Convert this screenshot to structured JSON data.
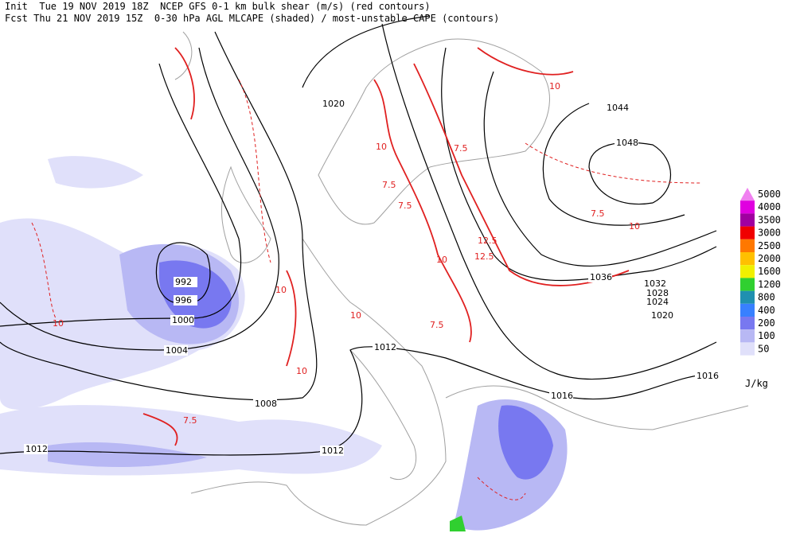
{
  "header": {
    "line1": "Init  Tue 19 NOV 2019 18Z  NCEP GFS 0-1 km bulk shear (m/s) (red contours)",
    "line2": "Fcst Thu 21 NOV 2019 15Z  0-30 hPa AGL MLCAPE (shaded) / most-unstable CAPE (contours)"
  },
  "pressure_labels": [
    "1020",
    "1044",
    "1048",
    "992",
    "996",
    "1000",
    "1004",
    "1012",
    "1008",
    "1016",
    "1016",
    "1012",
    "1012",
    "1036",
    "1032",
    "1028",
    "1024",
    "1020"
  ],
  "shear_labels": [
    "10",
    "7.5",
    "10",
    "12.5",
    "10",
    "7.5",
    "10",
    "7.5",
    "10",
    "12.5",
    "7.5",
    "10",
    "7.5",
    "10",
    "7.5",
    "10"
  ],
  "legend": {
    "levels": [
      {
        "label": 5000,
        "color": "#f080f0"
      },
      {
        "label": 4000,
        "color": "#e000e0"
      },
      {
        "label": 3500,
        "color": "#a000a0"
      },
      {
        "label": 3000,
        "color": "#f00000"
      },
      {
        "label": 2500,
        "color": "#ff7800"
      },
      {
        "label": 2000,
        "color": "#ffc000"
      },
      {
        "label": 1600,
        "color": "#f0f000"
      },
      {
        "label": 1200,
        "color": "#30d030"
      },
      {
        "label": 800,
        "color": "#2090b0"
      },
      {
        "label": 400,
        "color": "#3880ff"
      },
      {
        "label": 200,
        "color": "#7878f0"
      },
      {
        "label": 100,
        "color": "#b8b8f4"
      },
      {
        "label": 50,
        "color": "#e0e0fa"
      }
    ],
    "unit": "J/kg"
  }
}
